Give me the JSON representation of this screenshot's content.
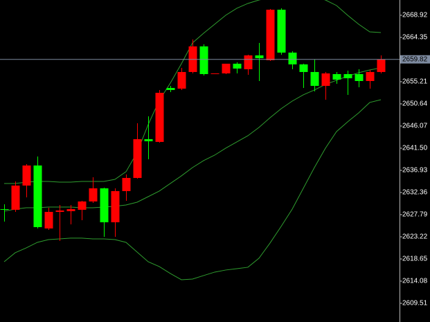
{
  "chart_data": {
    "type": "candlestick",
    "up_color": "#ff0000",
    "down_color": "#00ff00",
    "line_color": "#2f9e2f",
    "open": [
      2628.93,
      2628.79,
      2633.79,
      2637.93,
      2624.94,
      2628.36,
      2628.51,
      2628.79,
      2630.51,
      2633.22,
      2626.22,
      2632.65,
      2635.36,
      2643.36,
      2642.79,
      2653.92,
      2653.78,
      2657.21,
      2662.49,
      2656.92,
      2656.92,
      2658.92,
      2657.78,
      2660.64,
      2659.64,
      2670.06,
      2661.21,
      2658.78,
      2657.21,
      2654.35,
      2656.78,
      2656.78,
      2656.78,
      2655.35,
      2657.21
    ],
    "high": [
      2629.93,
      2634.65,
      2638.22,
      2639.79,
      2629.22,
      2629.79,
      2629.79,
      2630.65,
      2635.5,
      2633.36,
      2633.22,
      2636.08,
      2646.64,
      2648.07,
      2653.5,
      2654.35,
      2658.07,
      2663.92,
      2662.92,
      2656.92,
      2658.92,
      2659.21,
      2660.78,
      2663.21,
      2670.2,
      2670.35,
      2661.49,
      2658.92,
      2659.78,
      2657.21,
      2657.21,
      2657.49,
      2657.78,
      2657.64,
      2660.64
    ],
    "low": [
      2626.36,
      2628.36,
      2631.36,
      2624.94,
      2624.65,
      2622.37,
      2625.79,
      2626.65,
      2630.22,
      2623.22,
      2623.22,
      2630.65,
      2635.22,
      2639.22,
      2642.64,
      2653.07,
      2653.5,
      2656.92,
      2656.49,
      2656.78,
      2656.78,
      2656.92,
      2656.64,
      2655.35,
      2659.49,
      2660.78,
      2657.78,
      2653.92,
      2653.21,
      2651.5,
      2654.78,
      2652.5,
      2654.07,
      2653.78,
      2656.92
    ],
    "close": [
      2628.79,
      2633.79,
      2637.93,
      2625.22,
      2628.36,
      2628.65,
      2628.93,
      2630.51,
      2633.22,
      2626.22,
      2632.65,
      2635.36,
      2643.36,
      2642.93,
      2652.92,
      2653.5,
      2657.21,
      2662.49,
      2656.78,
      2656.92,
      2658.92,
      2657.92,
      2660.64,
      2660.06,
      2670.06,
      2661.21,
      2658.78,
      2657.21,
      2654.35,
      2656.92,
      2655.64,
      2655.92,
      2655.35,
      2657.21,
      2659.82
    ],
    "lines": [
      {
        "values": [
          2634.22,
          2634.22,
          2634.5,
          2634.65,
          2634.65,
          2634.5,
          2634.5,
          2634.65,
          2634.65,
          2634.65,
          2635.07,
          2636.65,
          2640.64,
          2646.36,
          2651.35,
          2654.92,
          2658.92,
          2663.21,
          2665.21,
          2667.06,
          2668.92,
          2670.35,
          2671.35,
          2672.06,
          2672.49,
          2672.77,
          2672.92,
          2672.77,
          2672.63,
          2672.06,
          2670.92,
          2668.92,
          2667.06,
          2665.49,
          2665.35
        ]
      },
      {
        "values": [
          2628.51,
          2628.93,
          2629.22,
          2629.22,
          2629.36,
          2629.36,
          2629.36,
          2629.22,
          2629.22,
          2629.36,
          2629.51,
          2629.79,
          2630.36,
          2631.5,
          2632.65,
          2634.22,
          2635.79,
          2637.5,
          2638.93,
          2640.07,
          2641.5,
          2642.79,
          2644.07,
          2645.78,
          2647.78,
          2649.64,
          2651.21,
          2652.5,
          2653.5,
          2654.64,
          2655.5,
          2656.35,
          2657.07,
          2657.64,
          2658.07
        ]
      },
      {
        "values": [
          2618.08,
          2619.94,
          2620.94,
          2622.08,
          2622.65,
          2622.79,
          2622.94,
          2622.94,
          2622.79,
          2622.79,
          2622.65,
          2622.08,
          2620.08,
          2618.08,
          2617.08,
          2615.65,
          2614.37,
          2614.51,
          2615.23,
          2615.94,
          2616.37,
          2616.65,
          2616.94,
          2618.8,
          2621.94,
          2625.36,
          2628.93,
          2633.22,
          2637.5,
          2641.5,
          2644.93,
          2646.93,
          2648.78,
          2650.93,
          2651.5
        ]
      }
    ],
    "current_price": 2659.82,
    "ylim": [
      2605.65,
      2672.06
    ],
    "yticks": [
      2668.92,
      2664.35,
      2655.21,
      2650.64,
      2646.07,
      {
        "value": 2641.5,
        "label": "2641.50"
      },
      2636.93,
      2632.36,
      2627.79,
      2623.22,
      2618.65,
      2614.08,
      2609.51
    ]
  }
}
